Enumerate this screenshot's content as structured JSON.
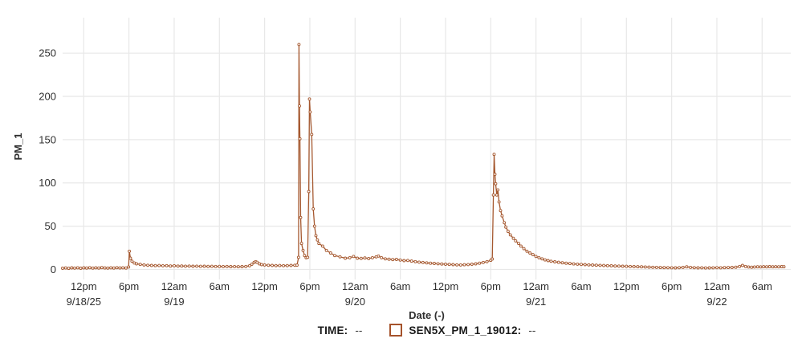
{
  "chart_data": {
    "type": "line",
    "title": "",
    "xlabel": "Date (-)",
    "ylabel": "PM_1",
    "x_unit": "hours since 9/18/25 00:00",
    "x_range": [
      9.2,
      105.8
    ],
    "y_range": [
      -7,
      291
    ],
    "grid": true,
    "legend_position": "bottom-center",
    "y_ticks": [
      0,
      50,
      100,
      150,
      200,
      250
    ],
    "x_ticks": [
      {
        "t": 12,
        "label": "12pm",
        "date": "9/18/25"
      },
      {
        "t": 18,
        "label": "6pm"
      },
      {
        "t": 24,
        "label": "12am",
        "date": "9/19"
      },
      {
        "t": 30,
        "label": "6am"
      },
      {
        "t": 36,
        "label": "12pm"
      },
      {
        "t": 42,
        "label": "6pm"
      },
      {
        "t": 48,
        "label": "12am",
        "date": "9/20"
      },
      {
        "t": 54,
        "label": "6am"
      },
      {
        "t": 60,
        "label": "12pm"
      },
      {
        "t": 66,
        "label": "6pm"
      },
      {
        "t": 72,
        "label": "12am",
        "date": "9/21"
      },
      {
        "t": 78,
        "label": "6am"
      },
      {
        "t": 84,
        "label": "12pm"
      },
      {
        "t": 90,
        "label": "6pm"
      },
      {
        "t": 96,
        "label": "12am",
        "date": "9/22"
      },
      {
        "t": 102,
        "label": "6am"
      }
    ],
    "legend": [
      {
        "label": "TIME:",
        "value": "--",
        "swatch": false
      },
      {
        "label": "SEN5X_PM_1_19012:",
        "value": "--",
        "swatch": true
      }
    ],
    "series": [
      {
        "name": "SEN5X_PM_1_19012",
        "color": "#a5582f",
        "marker": "open-circle",
        "points": [
          [
            9.2,
            1.4
          ],
          [
            9.6,
            1.7
          ],
          [
            10,
            1.3
          ],
          [
            10.4,
            1.8
          ],
          [
            10.8,
            1.5
          ],
          [
            11.2,
            1.9
          ],
          [
            11.6,
            1.4
          ],
          [
            12,
            1.8
          ],
          [
            12.4,
            1.6
          ],
          [
            12.8,
            2.0
          ],
          [
            13.2,
            1.5
          ],
          [
            13.6,
            1.9
          ],
          [
            14,
            1.6
          ],
          [
            14.4,
            2.1
          ],
          [
            14.8,
            1.7
          ],
          [
            15.2,
            1.5
          ],
          [
            15.6,
            1.9
          ],
          [
            16,
            1.6
          ],
          [
            16.4,
            2.0
          ],
          [
            16.8,
            1.7
          ],
          [
            17.2,
            1.9
          ],
          [
            17.6,
            1.6
          ],
          [
            17.95,
            2.8
          ],
          [
            18.05,
            21
          ],
          [
            18.2,
            13
          ],
          [
            18.4,
            9.5
          ],
          [
            18.7,
            7.5
          ],
          [
            19,
            6.5
          ],
          [
            19.5,
            5.8
          ],
          [
            20,
            5.2
          ],
          [
            20.5,
            4.8
          ],
          [
            21,
            4.6
          ],
          [
            21.5,
            4.4
          ],
          [
            22,
            4.5
          ],
          [
            22.5,
            4.2
          ],
          [
            23,
            4.3
          ],
          [
            23.5,
            4.0
          ],
          [
            24,
            4.2
          ],
          [
            24.5,
            3.9
          ],
          [
            25,
            4.0
          ],
          [
            25.5,
            3.8
          ],
          [
            26,
            3.9
          ],
          [
            26.5,
            3.7
          ],
          [
            27,
            3.8
          ],
          [
            27.5,
            3.6
          ],
          [
            28,
            3.7
          ],
          [
            28.5,
            3.5
          ],
          [
            29,
            3.6
          ],
          [
            29.5,
            3.4
          ],
          [
            30,
            3.5
          ],
          [
            30.5,
            3.3
          ],
          [
            31,
            3.4
          ],
          [
            31.5,
            3.2
          ],
          [
            32,
            3.3
          ],
          [
            32.5,
            3.1
          ],
          [
            33,
            3.2
          ],
          [
            33.5,
            3.4
          ],
          [
            34,
            4.2
          ],
          [
            34.3,
            6
          ],
          [
            34.6,
            8
          ],
          [
            34.8,
            9
          ],
          [
            35,
            8.2
          ],
          [
            35.3,
            6.5
          ],
          [
            35.6,
            5.5
          ],
          [
            36,
            5.2
          ],
          [
            36.5,
            4.8
          ],
          [
            37,
            4.6
          ],
          [
            37.5,
            4.4
          ],
          [
            38,
            4.5
          ],
          [
            38.5,
            4.3
          ],
          [
            39,
            4.4
          ],
          [
            39.5,
            4.6
          ],
          [
            40,
            4.8
          ],
          [
            40.3,
            5
          ],
          [
            40.5,
            14
          ],
          [
            40.55,
            260
          ],
          [
            40.62,
            189
          ],
          [
            40.68,
            151
          ],
          [
            40.78,
            60
          ],
          [
            40.9,
            30
          ],
          [
            41.1,
            22
          ],
          [
            41.3,
            16
          ],
          [
            41.5,
            13.5
          ],
          [
            41.7,
            14
          ],
          [
            41.85,
            90
          ],
          [
            41.95,
            197
          ],
          [
            42.05,
            182
          ],
          [
            42.25,
            156
          ],
          [
            42.45,
            70
          ],
          [
            42.62,
            50
          ],
          [
            42.8,
            39
          ],
          [
            43,
            34
          ],
          [
            43.2,
            30
          ],
          [
            43.7,
            27
          ],
          [
            44.2,
            22
          ],
          [
            44.75,
            19
          ],
          [
            45.3,
            16
          ],
          [
            46,
            14.5
          ],
          [
            46.7,
            13
          ],
          [
            47.3,
            13.5
          ],
          [
            47.8,
            15
          ],
          [
            48.3,
            13
          ],
          [
            48.8,
            12.8
          ],
          [
            49.3,
            13.2
          ],
          [
            49.8,
            12.6
          ],
          [
            50.3,
            13.5
          ],
          [
            50.8,
            14.5
          ],
          [
            51.1,
            15.5
          ],
          [
            51.5,
            13.5
          ],
          [
            52,
            12.2
          ],
          [
            52.5,
            11.8
          ],
          [
            53,
            11.4
          ],
          [
            53.5,
            11.6
          ],
          [
            54,
            10.8
          ],
          [
            54.5,
            10.2
          ],
          [
            55,
            10.4
          ],
          [
            55.5,
            9.6
          ],
          [
            56,
            9
          ],
          [
            56.5,
            8.4
          ],
          [
            57,
            8
          ],
          [
            57.5,
            7.6
          ],
          [
            58,
            7.2
          ],
          [
            58.5,
            6.9
          ],
          [
            59,
            6.6
          ],
          [
            59.5,
            6.3
          ],
          [
            60,
            6.0
          ],
          [
            60.5,
            5.8
          ],
          [
            61,
            5.5
          ],
          [
            61.5,
            5.3
          ],
          [
            62,
            5.2
          ],
          [
            62.5,
            5.4
          ],
          [
            63,
            5.6
          ],
          [
            63.5,
            6.0
          ],
          [
            64,
            6.5
          ],
          [
            64.5,
            7.2
          ],
          [
            65,
            8
          ],
          [
            65.5,
            9
          ],
          [
            66,
            10.5
          ],
          [
            66.2,
            12
          ],
          [
            66.35,
            86
          ],
          [
            66.45,
            133
          ],
          [
            66.55,
            110
          ],
          [
            66.65,
            99
          ],
          [
            66.8,
            86
          ],
          [
            66.95,
            92
          ],
          [
            67.1,
            78
          ],
          [
            67.3,
            68
          ],
          [
            67.5,
            62
          ],
          [
            67.8,
            54
          ],
          [
            68,
            49
          ],
          [
            68.3,
            44
          ],
          [
            68.6,
            40
          ],
          [
            69,
            36
          ],
          [
            69.3,
            33
          ],
          [
            69.7,
            30
          ],
          [
            70,
            27
          ],
          [
            70.4,
            24
          ],
          [
            70.8,
            21
          ],
          [
            71.2,
            19
          ],
          [
            71.6,
            17
          ],
          [
            72,
            15
          ],
          [
            72.4,
            13.5
          ],
          [
            72.8,
            12.2
          ],
          [
            73.2,
            11
          ],
          [
            73.6,
            10.2
          ],
          [
            74,
            9.4
          ],
          [
            74.5,
            8.8
          ],
          [
            75,
            8.2
          ],
          [
            75.5,
            7.7
          ],
          [
            76,
            7.2
          ],
          [
            76.5,
            6.8
          ],
          [
            77,
            6.4
          ],
          [
            77.5,
            6.1
          ],
          [
            78,
            5.8
          ],
          [
            78.5,
            5.5
          ],
          [
            79,
            5.3
          ],
          [
            79.5,
            5.1
          ],
          [
            80,
            4.9
          ],
          [
            80.5,
            4.7
          ],
          [
            81,
            4.5
          ],
          [
            81.5,
            4.3
          ],
          [
            82,
            4.2
          ],
          [
            82.5,
            4.0
          ],
          [
            83,
            3.9
          ],
          [
            83.5,
            3.7
          ],
          [
            84,
            3.6
          ],
          [
            84.5,
            3.4
          ],
          [
            85,
            3.3
          ],
          [
            85.5,
            3.1
          ],
          [
            86,
            3.0
          ],
          [
            86.5,
            2.8
          ],
          [
            87,
            2.7
          ],
          [
            87.5,
            2.5
          ],
          [
            88,
            2.4
          ],
          [
            88.5,
            2.2
          ],
          [
            89,
            2.1
          ],
          [
            89.5,
            2.0
          ],
          [
            90,
            1.9
          ],
          [
            90.5,
            1.8
          ],
          [
            91,
            2.0
          ],
          [
            91.5,
            2.4
          ],
          [
            92,
            3.0
          ],
          [
            92.5,
            2.4
          ],
          [
            93,
            2.0
          ],
          [
            93.5,
            1.8
          ],
          [
            94,
            1.9
          ],
          [
            94.5,
            1.7
          ],
          [
            95,
            1.8
          ],
          [
            95.5,
            1.9
          ],
          [
            96,
            2.0
          ],
          [
            96.5,
            1.9
          ],
          [
            97,
            2.1
          ],
          [
            97.5,
            2.2
          ],
          [
            98,
            2.3
          ],
          [
            98.5,
            2.6
          ],
          [
            99,
            3.4
          ],
          [
            99.4,
            4.6
          ],
          [
            99.8,
            3.4
          ],
          [
            100.2,
            2.8
          ],
          [
            100.6,
            2.6
          ],
          [
            101,
            2.8
          ],
          [
            101.4,
            3.0
          ],
          [
            101.8,
            2.9
          ],
          [
            102.2,
            3.1
          ],
          [
            102.6,
            3.0
          ],
          [
            103,
            3.2
          ],
          [
            103.4,
            3.0
          ],
          [
            103.8,
            3.1
          ],
          [
            104.2,
            3.0
          ],
          [
            104.6,
            3.2
          ],
          [
            104.9,
            3.1
          ]
        ]
      }
    ],
    "colors": {
      "series": "#a5582f",
      "swatch_border": "#a5522b",
      "grid": "#e8e8e8",
      "tick_text": "#2f2f2f",
      "axis_title_text": "#2f2f2f"
    }
  }
}
